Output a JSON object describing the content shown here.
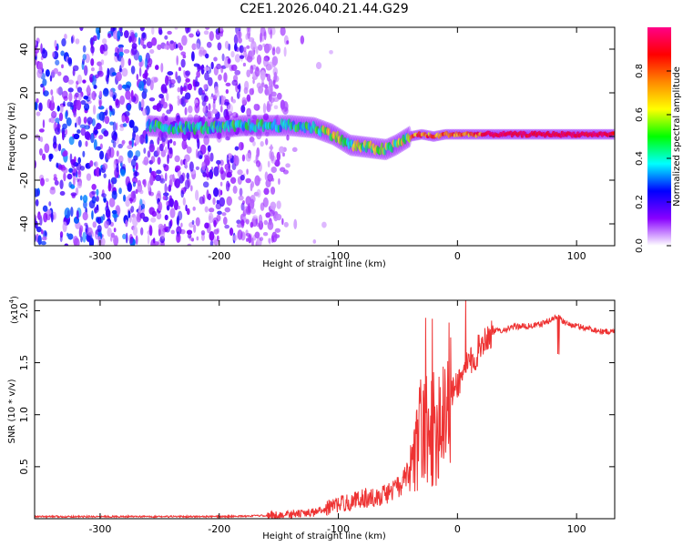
{
  "title": "C2E1.2026.040.21.44.G29",
  "chart_data": [
    {
      "type": "heatmap",
      "xlabel": "Height of straight line (km)",
      "ylabel": "Frequency (Hz)",
      "xlim": [
        -355,
        132
      ],
      "ylim": [
        -50,
        50
      ],
      "xticks": [
        -300,
        -200,
        -100,
        0,
        100
      ],
      "xtick_labels": [
        "-300",
        "-200",
        "-100",
        "0",
        "100"
      ],
      "yticks": [
        -40,
        -20,
        0,
        20,
        40
      ],
      "ytick_labels": [
        "-40",
        "-20",
        "0",
        "20",
        "40"
      ],
      "grid": false,
      "trace_center_frequency": [
        [
          -260,
          5
        ],
        [
          -240,
          4
        ],
        [
          -220,
          4
        ],
        [
          -200,
          4
        ],
        [
          -180,
          5
        ],
        [
          -160,
          5
        ],
        [
          -140,
          5
        ],
        [
          -120,
          4
        ],
        [
          -105,
          1
        ],
        [
          -90,
          -4
        ],
        [
          -75,
          -5
        ],
        [
          -60,
          -6
        ],
        [
          -52,
          -4
        ],
        [
          -40,
          0
        ],
        [
          -30,
          1
        ],
        [
          -20,
          0
        ],
        [
          -10,
          1
        ],
        [
          0,
          1
        ],
        [
          20,
          1
        ],
        [
          60,
          1
        ],
        [
          90,
          1
        ],
        [
          132,
          1
        ]
      ],
      "colorbar": {
        "label": "Normalized spectral amplitude",
        "range": [
          0,
          1
        ],
        "ticks": [
          0.0,
          0.2,
          0.4,
          0.6,
          0.8
        ],
        "tick_labels": [
          "0.0",
          "0.2",
          "0.4",
          "0.6",
          "0.8"
        ],
        "colors": [
          "#ffffff",
          "#8800ff",
          "#0000ff",
          "#00ffff",
          "#00ff00",
          "#ffff00",
          "#ff8800",
          "#ff0000",
          "#ff0088"
        ]
      }
    },
    {
      "type": "line",
      "xlabel": "Height of straight line (km)",
      "ylabel": "SNR (10 * v/v)",
      "y_multiplier_label": "(x10",
      "y_multiplier_exponent": "4",
      "y_multiplier_close": ")",
      "xlim": [
        -355,
        132
      ],
      "ylim": [
        0,
        2.1
      ],
      "xticks": [
        -300,
        -200,
        -100,
        0,
        100
      ],
      "xtick_labels": [
        "-300",
        "-200",
        "-100",
        "0",
        "100"
      ],
      "yticks": [
        0.5,
        1.0,
        1.5,
        2.0
      ],
      "ytick_labels": [
        "0.5",
        "1.0",
        "1.5",
        "2.0"
      ],
      "color": "#ee3333",
      "series": [
        {
          "name": "SNR",
          "x": [
            -355,
            -300,
            -250,
            -200,
            -160,
            -140,
            -120,
            -110,
            -100,
            -90,
            -80,
            -70,
            -60,
            -50,
            -45,
            -40,
            -35,
            -30,
            -25,
            -20,
            -15,
            -10,
            -5,
            0,
            5,
            10,
            15,
            20,
            25,
            30,
            40,
            50,
            60,
            70,
            80,
            85,
            90,
            100,
            110,
            120,
            132
          ],
          "y": [
            0.02,
            0.02,
            0.02,
            0.02,
            0.03,
            0.04,
            0.06,
            0.1,
            0.14,
            0.16,
            0.2,
            0.2,
            0.24,
            0.3,
            0.35,
            0.45,
            0.6,
            0.9,
            0.8,
            0.85,
            1.0,
            1.15,
            1.2,
            1.3,
            1.4,
            1.5,
            1.55,
            1.7,
            1.75,
            1.8,
            1.82,
            1.85,
            1.85,
            1.87,
            1.92,
            1.95,
            1.88,
            1.85,
            1.83,
            1.8,
            1.8
          ]
        }
      ]
    }
  ]
}
